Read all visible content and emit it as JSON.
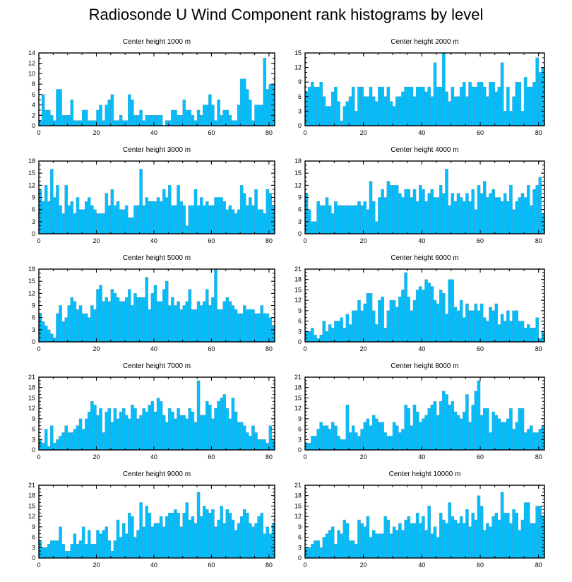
{
  "title": "Radiosonde U Wind Component rank histograms by level",
  "chart_data": [
    {
      "type": "bar",
      "title": "Center height 1000 m",
      "ylim": [
        0,
        14
      ],
      "yticks": [
        0,
        2,
        4,
        6,
        8,
        10,
        12,
        14
      ],
      "xlim": [
        0,
        82
      ],
      "xticks": [
        0,
        20,
        40,
        60,
        80
      ],
      "values": [
        1,
        6,
        3,
        3,
        2,
        1,
        7,
        7,
        2,
        2,
        2,
        5,
        1,
        1,
        1,
        3,
        3,
        1,
        1,
        1,
        3,
        4,
        1,
        4,
        5,
        6,
        1,
        1,
        2,
        1,
        1,
        6,
        5,
        2,
        2,
        3,
        1,
        2,
        2,
        2,
        2,
        2,
        2,
        0,
        1,
        1,
        3,
        3,
        2,
        2,
        5,
        3,
        3,
        2,
        1,
        3,
        2,
        4,
        4,
        6,
        4,
        1,
        5,
        2,
        3,
        3,
        2,
        1,
        1,
        4,
        9,
        9,
        7,
        5,
        1,
        4,
        4,
        4,
        13,
        7,
        8,
        8
      ]
    },
    {
      "type": "bar",
      "title": "Center height 2000 m",
      "ylim": [
        0,
        15
      ],
      "yticks": [
        0,
        3,
        6,
        9,
        12,
        15
      ],
      "xlim": [
        0,
        82
      ],
      "xticks": [
        0,
        20,
        40,
        60,
        80
      ],
      "values": [
        7,
        8,
        9,
        8,
        8,
        9,
        6,
        4,
        4,
        7,
        8,
        5,
        1,
        4,
        5,
        6,
        8,
        3,
        8,
        8,
        6,
        6,
        8,
        6,
        5,
        8,
        8,
        6,
        8,
        5,
        4,
        6,
        6,
        7,
        8,
        8,
        8,
        6,
        8,
        8,
        8,
        7,
        8,
        6,
        13,
        8,
        8,
        15,
        7,
        5,
        8,
        6,
        6,
        8,
        9,
        6,
        9,
        8,
        8,
        9,
        9,
        8,
        6,
        9,
        9,
        7,
        8,
        13,
        3,
        8,
        3,
        6,
        9,
        9,
        3,
        10,
        8,
        8,
        9,
        14,
        11,
        12
      ]
    },
    {
      "type": "bar",
      "title": "Center height 3000 m",
      "ylim": [
        0,
        18
      ],
      "yticks": [
        0,
        3,
        6,
        9,
        12,
        15,
        18
      ],
      "xlim": [
        0,
        82
      ],
      "xticks": [
        0,
        20,
        40,
        60,
        80
      ],
      "values": [
        11,
        8,
        12,
        8,
        16,
        9,
        12,
        7,
        5,
        12,
        7,
        8,
        5,
        9,
        6,
        6,
        8,
        9,
        7,
        6,
        5,
        5,
        5,
        10,
        7,
        11,
        7,
        8,
        6,
        6,
        7,
        4,
        4,
        7,
        7,
        16,
        7,
        9,
        8,
        8,
        8,
        9,
        8,
        11,
        9,
        12,
        7,
        7,
        12,
        8,
        7,
        2,
        7,
        7,
        11,
        7,
        9,
        7,
        8,
        7,
        7,
        9,
        9,
        9,
        8,
        6,
        7,
        6,
        5,
        6,
        12,
        10,
        7,
        9,
        7,
        11,
        6,
        6,
        5,
        11,
        10,
        7
      ]
    },
    {
      "type": "bar",
      "title": "Center height 4000 m",
      "ylim": [
        0,
        18
      ],
      "yticks": [
        0,
        3,
        6,
        9,
        12,
        15,
        18
      ],
      "xlim": [
        0,
        82
      ],
      "xticks": [
        0,
        20,
        40,
        60,
        80
      ],
      "values": [
        10,
        6,
        3,
        3,
        8,
        7,
        7,
        9,
        7,
        5,
        8,
        7,
        7,
        7,
        7,
        7,
        7,
        7,
        8,
        7,
        8,
        6,
        13,
        8,
        3,
        9,
        11,
        9,
        13,
        12,
        12,
        12,
        10,
        9,
        11,
        11,
        9,
        11,
        8,
        12,
        11,
        8,
        10,
        11,
        9,
        9,
        12,
        10,
        16,
        7,
        10,
        8,
        10,
        9,
        8,
        10,
        8,
        11,
        6,
        12,
        10,
        13,
        9,
        10,
        11,
        9,
        9,
        8,
        10,
        8,
        12,
        6,
        8,
        9,
        10,
        9,
        12,
        7,
        11,
        12,
        14,
        5
      ]
    },
    {
      "type": "bar",
      "title": "Center height 5000 m",
      "ylim": [
        0,
        18
      ],
      "yticks": [
        0,
        3,
        6,
        9,
        12,
        15,
        18
      ],
      "xlim": [
        0,
        82
      ],
      "xticks": [
        0,
        20,
        40,
        60,
        80
      ],
      "values": [
        7,
        5,
        4,
        3,
        2,
        1,
        7,
        9,
        5,
        6,
        9,
        11,
        10,
        8,
        9,
        7,
        7,
        6,
        9,
        8,
        13,
        14,
        10,
        11,
        10,
        13,
        12,
        11,
        10,
        10,
        11,
        13,
        9,
        12,
        11,
        11,
        11,
        16,
        8,
        12,
        14,
        10,
        10,
        13,
        15,
        9,
        11,
        9,
        10,
        8,
        9,
        10,
        13,
        8,
        8,
        10,
        9,
        10,
        13,
        9,
        11,
        18,
        8,
        8,
        10,
        11,
        10,
        9,
        8,
        7,
        7,
        9,
        8,
        8,
        8,
        7,
        7,
        9,
        7,
        7,
        6,
        4
      ]
    },
    {
      "type": "bar",
      "title": "Center height 6000 m",
      "ylim": [
        0,
        21
      ],
      "yticks": [
        0,
        3,
        6,
        9,
        12,
        15,
        18,
        21
      ],
      "xlim": [
        0,
        82
      ],
      "xticks": [
        0,
        20,
        40,
        60,
        80
      ],
      "values": [
        3,
        3,
        4,
        2,
        1,
        2,
        6,
        3,
        5,
        4,
        6,
        6,
        7,
        4,
        8,
        5,
        9,
        9,
        12,
        9,
        11,
        14,
        14,
        9,
        5,
        12,
        13,
        4,
        9,
        12,
        12,
        10,
        13,
        15,
        20,
        13,
        9,
        12,
        15,
        16,
        15,
        18,
        17,
        16,
        12,
        11,
        15,
        14,
        8,
        18,
        18,
        10,
        9,
        12,
        7,
        11,
        9,
        9,
        11,
        9,
        11,
        7,
        6,
        10,
        9,
        11,
        5,
        8,
        6,
        9,
        6,
        9,
        9,
        6,
        6,
        4,
        5,
        4,
        4,
        7,
        1,
        3
      ]
    },
    {
      "type": "bar",
      "title": "Center height 7000 m",
      "ylim": [
        0,
        21
      ],
      "yticks": [
        0,
        3,
        6,
        9,
        12,
        15,
        18,
        21
      ],
      "xlim": [
        0,
        82
      ],
      "xticks": [
        0,
        20,
        40,
        60,
        80
      ],
      "values": [
        3,
        2,
        6,
        1,
        7,
        2,
        3,
        4,
        5,
        7,
        5,
        5,
        6,
        7,
        9,
        6,
        9,
        11,
        14,
        13,
        10,
        12,
        5,
        11,
        12,
        8,
        12,
        9,
        11,
        12,
        10,
        9,
        13,
        12,
        9,
        10,
        12,
        11,
        13,
        14,
        11,
        15,
        14,
        10,
        8,
        12,
        11,
        9,
        12,
        10,
        10,
        9,
        12,
        11,
        8,
        20,
        10,
        10,
        14,
        13,
        9,
        12,
        14,
        15,
        16,
        12,
        9,
        15,
        11,
        8,
        8,
        7,
        5,
        4,
        7,
        5,
        3,
        3,
        3,
        2,
        7,
        3
      ]
    },
    {
      "type": "bar",
      "title": "Center height 8000 m",
      "ylim": [
        0,
        21
      ],
      "yticks": [
        0,
        3,
        6,
        9,
        12,
        15,
        18,
        21
      ],
      "xlim": [
        0,
        82
      ],
      "xticks": [
        0,
        20,
        40,
        60,
        80
      ],
      "values": [
        2,
        2,
        4,
        4,
        6,
        8,
        7,
        7,
        6,
        8,
        7,
        4,
        3,
        3,
        13,
        5,
        7,
        5,
        4,
        6,
        8,
        9,
        7,
        10,
        9,
        8,
        8,
        5,
        4,
        4,
        8,
        7,
        5,
        6,
        13,
        12,
        7,
        13,
        11,
        8,
        9,
        10,
        12,
        13,
        14,
        10,
        14,
        17,
        16,
        13,
        14,
        11,
        10,
        9,
        11,
        16,
        8,
        13,
        17,
        20,
        10,
        12,
        12,
        5,
        11,
        10,
        9,
        8,
        8,
        9,
        12,
        6,
        8,
        12,
        12,
        5,
        6,
        7,
        5,
        5,
        6,
        7
      ]
    },
    {
      "type": "bar",
      "title": "Center height 9000 m",
      "ylim": [
        0,
        21
      ],
      "yticks": [
        0,
        3,
        6,
        9,
        12,
        15,
        18,
        21
      ],
      "xlim": [
        0,
        82
      ],
      "xticks": [
        0,
        20,
        40,
        60,
        80
      ],
      "values": [
        5,
        3,
        3,
        4,
        5,
        5,
        5,
        9,
        4,
        2,
        2,
        4,
        7,
        4,
        5,
        9,
        4,
        8,
        4,
        4,
        8,
        7,
        8,
        9,
        5,
        2,
        5,
        11,
        6,
        10,
        7,
        13,
        12,
        6,
        8,
        16,
        9,
        15,
        13,
        9,
        10,
        10,
        12,
        9,
        12,
        13,
        13,
        14,
        13,
        9,
        13,
        16,
        11,
        12,
        10,
        19,
        12,
        15,
        14,
        13,
        14,
        9,
        11,
        15,
        10,
        14,
        13,
        11,
        8,
        10,
        12,
        14,
        13,
        10,
        9,
        10,
        12,
        13,
        7,
        9,
        7,
        10
      ]
    },
    {
      "type": "bar",
      "title": "Center height 10000 m",
      "ylim": [
        0,
        21
      ],
      "yticks": [
        0,
        3,
        6,
        9,
        12,
        15,
        18,
        21
      ],
      "xlim": [
        0,
        82
      ],
      "xticks": [
        0,
        20,
        40,
        60,
        80
      ],
      "values": [
        3,
        3,
        4,
        5,
        5,
        3,
        6,
        7,
        8,
        9,
        4,
        8,
        7,
        11,
        10,
        5,
        5,
        4,
        11,
        10,
        9,
        12,
        6,
        8,
        7,
        7,
        7,
        12,
        11,
        7,
        9,
        8,
        10,
        8,
        11,
        12,
        10,
        10,
        13,
        10,
        12,
        8,
        15,
        7,
        9,
        6,
        13,
        11,
        10,
        16,
        12,
        11,
        10,
        12,
        10,
        14,
        9,
        13,
        11,
        18,
        15,
        8,
        10,
        9,
        12,
        13,
        11,
        19,
        13,
        13,
        10,
        14,
        13,
        8,
        11,
        16,
        16,
        10,
        10,
        15,
        15,
        12
      ]
    }
  ]
}
